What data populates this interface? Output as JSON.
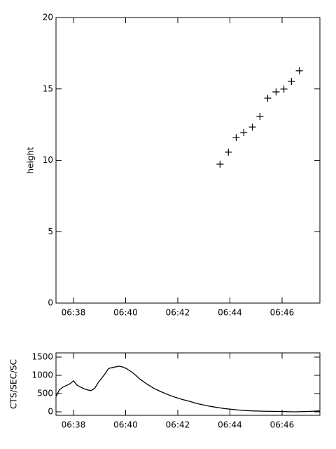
{
  "chart_data": [
    {
      "type": "scatter",
      "y_label": "height",
      "x": [
        43.62,
        43.94,
        44.24,
        44.53,
        44.86,
        45.15,
        45.45,
        45.77,
        46.07,
        46.36,
        46.66
      ],
      "values": [
        9.73,
        10.57,
        11.6,
        11.94,
        12.33,
        13.07,
        14.35,
        14.79,
        14.99,
        15.53,
        16.27
      ],
      "color": "#000000",
      "xlim": [
        37.33,
        47.45
      ],
      "ylim": [
        0,
        20
      ],
      "xticks": [
        {
          "value": 38,
          "label": "06:38"
        },
        {
          "value": 40,
          "label": "06:40"
        },
        {
          "value": 42,
          "label": "06:42"
        },
        {
          "value": 44,
          "label": "06:44"
        },
        {
          "value": 46,
          "label": "06:46"
        }
      ],
      "yticks": [
        0,
        5,
        10,
        15,
        20
      ]
    },
    {
      "type": "line",
      "y_label": "CTS/SEC/SC",
      "x": [
        37.33,
        37.46,
        37.6,
        37.73,
        37.87,
        38.0,
        38.14,
        38.27,
        38.41,
        38.54,
        38.67,
        38.81,
        38.94,
        39.08,
        39.21,
        39.35,
        39.48,
        39.61,
        39.75,
        39.88,
        40.02,
        40.15,
        40.29,
        40.42,
        40.56,
        40.82,
        41.09,
        41.36,
        41.63,
        41.9,
        42.17,
        42.44,
        42.71,
        42.98,
        43.24,
        43.51,
        43.78,
        44.05,
        44.32,
        44.59,
        44.86,
        45.39,
        45.93,
        46.47,
        47.01,
        47.45
      ],
      "values": [
        420,
        600,
        680,
        720,
        770,
        850,
        730,
        680,
        630,
        600,
        580,
        640,
        790,
        920,
        1040,
        1190,
        1210,
        1230,
        1250,
        1230,
        1190,
        1130,
        1060,
        980,
        890,
        760,
        640,
        550,
        470,
        400,
        340,
        290,
        230,
        190,
        150,
        120,
        90,
        70,
        50,
        35,
        25,
        15,
        10,
        0,
        10,
        25
      ],
      "color": "#000000",
      "xlim": [
        37.33,
        47.45
      ],
      "ylim": [
        -96,
        1615
      ],
      "xticks": [
        {
          "value": 38,
          "label": "06:38"
        },
        {
          "value": 40,
          "label": "06:40"
        },
        {
          "value": 42,
          "label": "06:42"
        },
        {
          "value": 44,
          "label": "06:44"
        },
        {
          "value": 46,
          "label": "06:46"
        }
      ],
      "yticks": [
        0,
        500,
        1000,
        1500
      ]
    }
  ]
}
